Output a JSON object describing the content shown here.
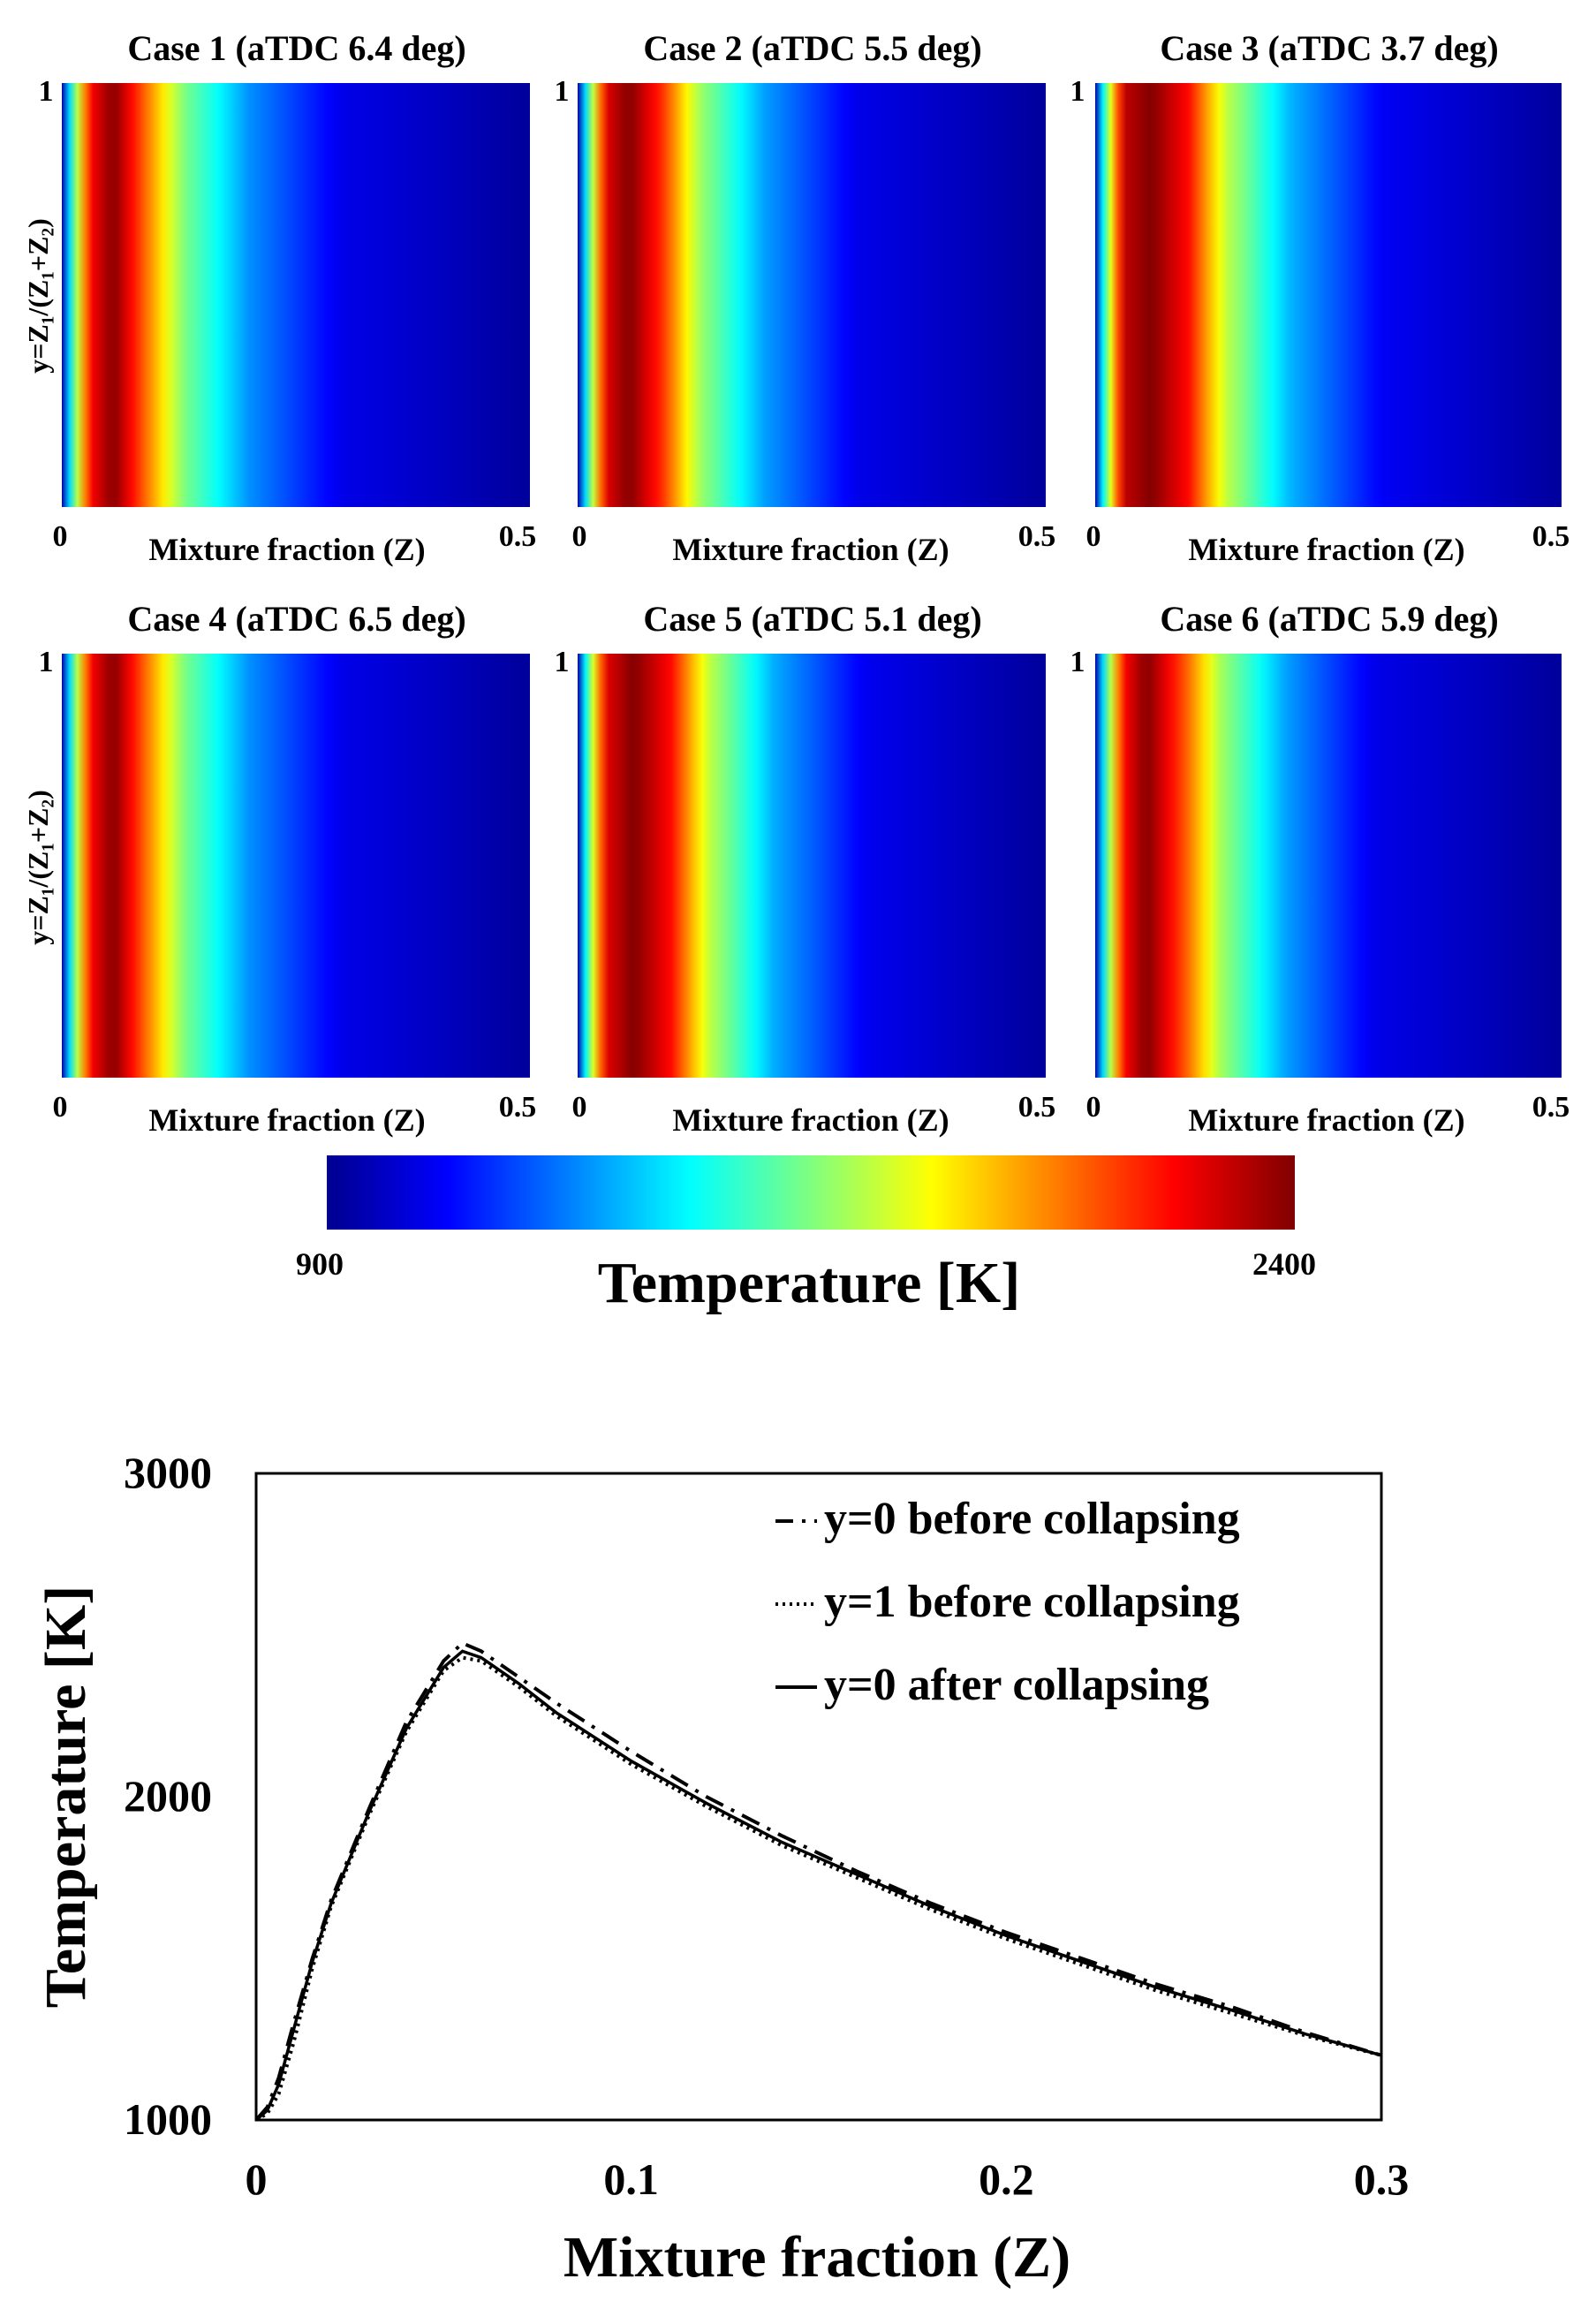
{
  "colormap": {
    "stops": [
      "#00008f",
      "#0000ff",
      "#00ffff",
      "#ffff00",
      "#ff0000",
      "#800000"
    ],
    "tick_min": "900",
    "tick_max": "2400",
    "label": "Temperature [K]",
    "range": [
      900,
      2400
    ]
  },
  "panels": [
    {
      "title": "Case 1 (aTDC 6.4 deg)",
      "xlabel": "Mixture fraction (Z)",
      "ylabel": "y=Z₁/(Z₁+Z₂)",
      "xtick_min": "0",
      "xtick_max": "0.5",
      "ytick_max": "1"
    },
    {
      "title": "Case 2 (aTDC 5.5 deg)",
      "xlabel": "Mixture fraction (Z)",
      "ylabel": "",
      "xtick_min": "0",
      "xtick_max": "0.5",
      "ytick_max": "1"
    },
    {
      "title": "Case 3 (aTDC 3.7 deg)",
      "xlabel": "Mixture fraction (Z)",
      "ylabel": "",
      "xtick_min": "0",
      "xtick_max": "0.5",
      "ytick_max": "1"
    },
    {
      "title": "Case 4 (aTDC 6.5 deg)",
      "xlabel": "Mixture fraction (Z)",
      "ylabel": "y=Z₁/(Z₁+Z₂)",
      "xtick_min": "0",
      "xtick_max": "0.5",
      "ytick_max": "1"
    },
    {
      "title": "Case 5 (aTDC 5.1 deg)",
      "xlabel": "Mixture fraction (Z)",
      "ylabel": "",
      "xtick_min": "0",
      "xtick_max": "0.5",
      "ytick_max": "1"
    },
    {
      "title": "Case 6 (aTDC 5.9 deg)",
      "xlabel": "Mixture fraction (Z)",
      "ylabel": "",
      "xtick_min": "0",
      "xtick_max": "0.5",
      "ytick_max": "1"
    }
  ],
  "chart_data": [
    {
      "type": "heatmap",
      "title": "Case 1 (aTDC 6.4 deg)",
      "xlabel": "Mixture fraction (Z)",
      "ylabel": "y=Z₁/(Z₁+Z₂)",
      "xlim": [
        0,
        0.5
      ],
      "ylim": [
        0,
        1
      ],
      "colorbar": {
        "label": "Temperature [K]",
        "range": [
          900,
          2400
        ]
      },
      "profile": {
        "z": [
          0,
          0.01,
          0.03,
          0.055,
          0.09,
          0.13,
          0.2,
          0.3,
          0.5
        ],
        "T": [
          950,
          1500,
          2200,
          2400,
          2050,
          1650,
          1300,
          1050,
          920
        ]
      }
    },
    {
      "type": "heatmap",
      "title": "Case 2 (aTDC 5.5 deg)",
      "xlabel": "Mixture fraction (Z)",
      "xlim": [
        0,
        0.5
      ],
      "ylim": [
        0,
        1
      ],
      "colorbar": {
        "label": "Temperature [K]",
        "range": [
          900,
          2400
        ]
      },
      "profile": {
        "z": [
          0,
          0.01,
          0.03,
          0.055,
          0.09,
          0.13,
          0.2,
          0.3,
          0.5
        ],
        "T": [
          950,
          1500,
          2250,
          2400,
          2150,
          1700,
          1320,
          1050,
          920
        ]
      }
    },
    {
      "type": "heatmap",
      "title": "Case 3 (aTDC 3.7 deg)",
      "xlabel": "Mixture fraction (Z)",
      "xlim": [
        0,
        0.5
      ],
      "ylim": [
        0,
        1
      ],
      "colorbar": {
        "label": "Temperature [K]",
        "range": [
          900,
          2400
        ]
      },
      "profile": {
        "z": [
          0,
          0.01,
          0.03,
          0.06,
          0.1,
          0.14,
          0.21,
          0.31,
          0.5
        ],
        "T": [
          950,
          1550,
          2300,
          2400,
          2200,
          1750,
          1350,
          1070,
          920
        ]
      }
    },
    {
      "type": "heatmap",
      "title": "Case 4 (aTDC 6.5 deg)",
      "xlabel": "Mixture fraction (Z)",
      "ylabel": "y=Z₁/(Z₁+Z₂)",
      "xlim": [
        0,
        0.5
      ],
      "ylim": [
        0,
        1
      ],
      "colorbar": {
        "label": "Temperature [K]",
        "range": [
          900,
          2400
        ]
      },
      "profile": {
        "z": [
          0,
          0.01,
          0.03,
          0.055,
          0.09,
          0.13,
          0.2,
          0.3,
          0.5
        ],
        "T": [
          950,
          1500,
          2200,
          2400,
          2050,
          1650,
          1300,
          1050,
          920
        ]
      }
    },
    {
      "type": "heatmap",
      "title": "Case 5 (aTDC 5.1 deg)",
      "xlabel": "Mixture fraction (Z)",
      "xlim": [
        0,
        0.5
      ],
      "ylim": [
        0,
        1
      ],
      "colorbar": {
        "label": "Temperature [K]",
        "range": [
          900,
          2400
        ]
      },
      "profile": {
        "z": [
          0,
          0.01,
          0.03,
          0.06,
          0.1,
          0.14,
          0.21,
          0.31,
          0.5
        ],
        "T": [
          950,
          1550,
          2250,
          2400,
          2200,
          1750,
          1340,
          1060,
          920
        ]
      }
    },
    {
      "type": "heatmap",
      "title": "Case 6 (aTDC 5.9 deg)",
      "xlabel": "Mixture fraction (Z)",
      "xlim": [
        0,
        0.5
      ],
      "ylim": [
        0,
        1
      ],
      "colorbar": {
        "label": "Temperature [K]",
        "range": [
          900,
          2400
        ]
      },
      "profile": {
        "z": [
          0,
          0.01,
          0.03,
          0.055,
          0.095,
          0.135,
          0.205,
          0.3,
          0.5
        ],
        "T": [
          950,
          1500,
          2200,
          2400,
          2100,
          1700,
          1320,
          1050,
          920
        ]
      }
    },
    {
      "type": "line",
      "xlabel": "Mixture fraction (Z)",
      "ylabel": "Temperature [K]",
      "xlim": [
        0,
        0.3
      ],
      "ylim": [
        1000,
        3000
      ],
      "xticks": [
        "0",
        "0.1",
        "0.2",
        "0.3"
      ],
      "yticks": [
        "1000",
        "2000",
        "3000"
      ],
      "grid": false,
      "legend_position": "top-right",
      "series": [
        {
          "name": "y=0 before collapsing",
          "style": "dashdot",
          "x": [
            0,
            0.003,
            0.006,
            0.01,
            0.015,
            0.02,
            0.03,
            0.04,
            0.05,
            0.055,
            0.06,
            0.07,
            0.08,
            0.1,
            0.12,
            0.14,
            0.16,
            0.18,
            0.2,
            0.22,
            0.24,
            0.26,
            0.28,
            0.3
          ],
          "y": [
            1000,
            1040,
            1130,
            1300,
            1500,
            1680,
            1960,
            2230,
            2420,
            2475,
            2450,
            2370,
            2290,
            2140,
            2000,
            1880,
            1770,
            1670,
            1580,
            1500,
            1420,
            1350,
            1270,
            1200
          ]
        },
        {
          "name": "y=1 before collapsing",
          "style": "dotted",
          "x": [
            0,
            0.003,
            0.006,
            0.01,
            0.015,
            0.02,
            0.03,
            0.04,
            0.05,
            0.055,
            0.06,
            0.07,
            0.08,
            0.1,
            0.12,
            0.14,
            0.16,
            0.18,
            0.2,
            0.22,
            0.24,
            0.26,
            0.28,
            0.3
          ],
          "y": [
            1000,
            1020,
            1080,
            1240,
            1470,
            1660,
            1940,
            2200,
            2390,
            2430,
            2420,
            2340,
            2250,
            2100,
            1970,
            1850,
            1750,
            1650,
            1560,
            1480,
            1400,
            1330,
            1260,
            1200
          ]
        },
        {
          "name": "y=0 after collapsing",
          "style": "solid",
          "x": [
            0,
            0.003,
            0.006,
            0.01,
            0.015,
            0.02,
            0.03,
            0.04,
            0.05,
            0.055,
            0.06,
            0.07,
            0.08,
            0.1,
            0.12,
            0.14,
            0.16,
            0.18,
            0.2,
            0.22,
            0.24,
            0.26,
            0.28,
            0.3
          ],
          "y": [
            1000,
            1030,
            1110,
            1280,
            1490,
            1670,
            1950,
            2210,
            2400,
            2450,
            2430,
            2350,
            2260,
            2110,
            1980,
            1860,
            1760,
            1660,
            1570,
            1490,
            1410,
            1340,
            1265,
            1200
          ]
        }
      ]
    }
  ]
}
